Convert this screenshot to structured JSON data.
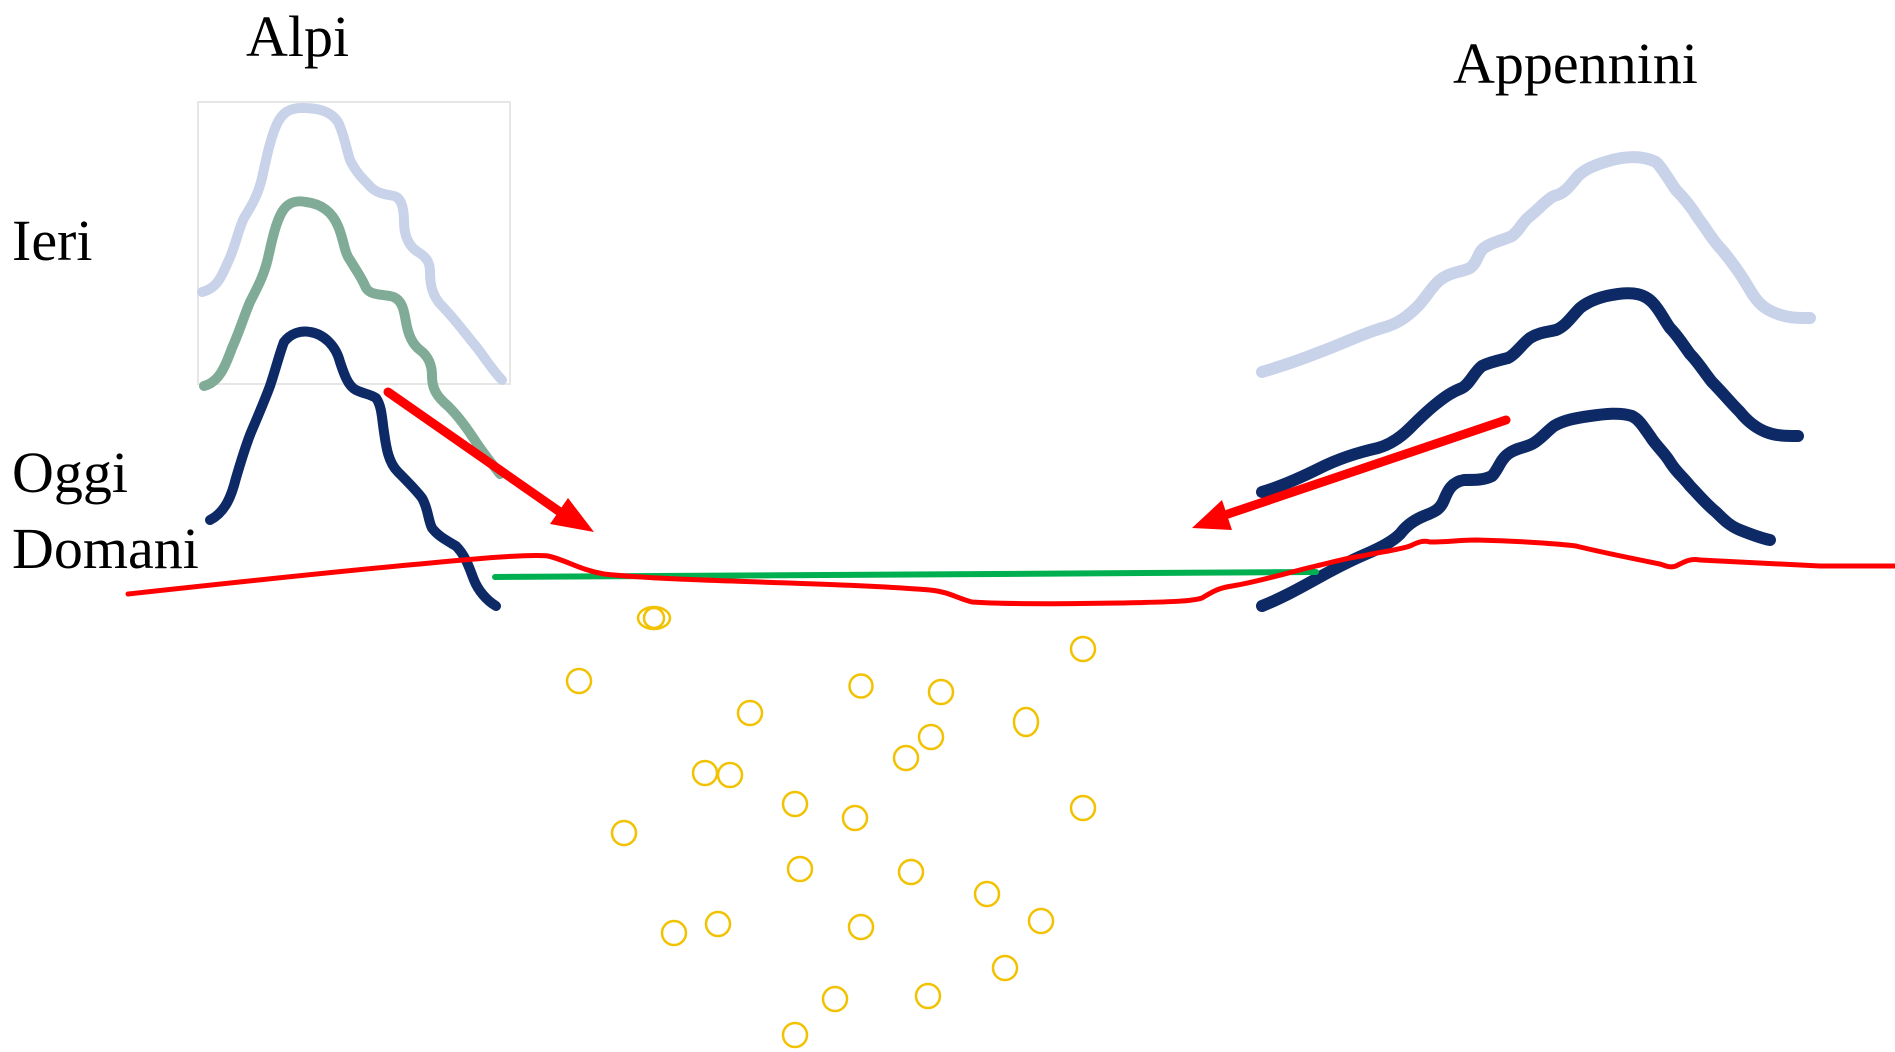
{
  "labels": {
    "alpi": "Alpi",
    "appennini": "Appennini",
    "ieri": "Ieri",
    "oggi": "Oggi",
    "domani": "Domani"
  },
  "colors": {
    "ieri_mountains": "#c8d3ea",
    "intermediate_mountain": "#7fab97",
    "oggi_mountains": "#0d2a66",
    "ground_line": "#ff0000",
    "arrows": "#ff0000",
    "water_level": "#00b050",
    "sediment_particles": "#f2c200",
    "frame": "#e6e6e6"
  },
  "icons": {
    "arrow_alps": "arrow-down-right-icon",
    "arrow_apennines": "arrow-down-left-icon",
    "particles": "circle-icon"
  }
}
